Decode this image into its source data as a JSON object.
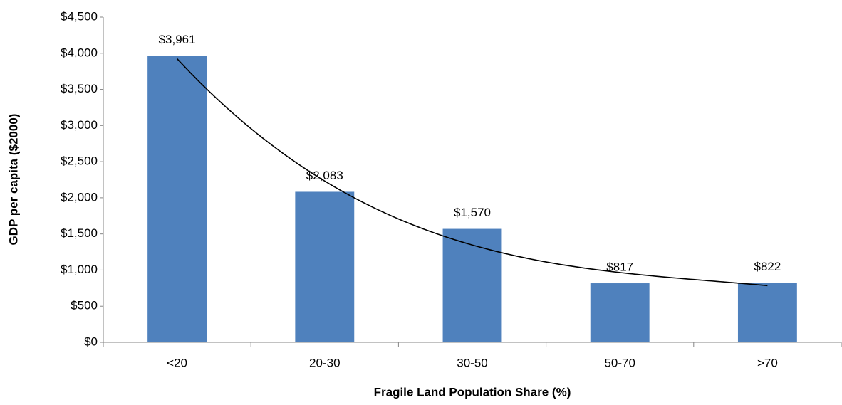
{
  "chart_data": {
    "type": "bar",
    "x_label": "Fragile Land Population Share (%)",
    "y_label": "GDP per capita ($2000)",
    "categories": [
      "<20",
      "20-30",
      "30-50",
      "50-70",
      ">70"
    ],
    "values": [
      3961,
      2083,
      1570,
      817,
      822
    ],
    "value_labels": [
      "$3,961",
      "$2,083",
      "$1,570",
      "$817",
      "$822"
    ],
    "color": "#4f81bd",
    "ylim": [
      0,
      4500
    ],
    "yticks": [
      {
        "value": 0,
        "label": "$0"
      },
      {
        "value": 500,
        "label": "$500"
      },
      {
        "value": 1000,
        "label": "$1,000"
      },
      {
        "value": 1500,
        "label": "$1,500"
      },
      {
        "value": 2000,
        "label": "$2,000"
      },
      {
        "value": 2500,
        "label": "$2,500"
      },
      {
        "value": 3000,
        "label": "$3,000"
      },
      {
        "value": 3500,
        "label": "$3,500"
      },
      {
        "value": 4000,
        "label": "$4,000"
      },
      {
        "value": 4500,
        "label": "$4,500"
      }
    ],
    "grid": false,
    "trendline": {
      "type": "polynomial",
      "order": 3,
      "color": "#000000"
    }
  }
}
